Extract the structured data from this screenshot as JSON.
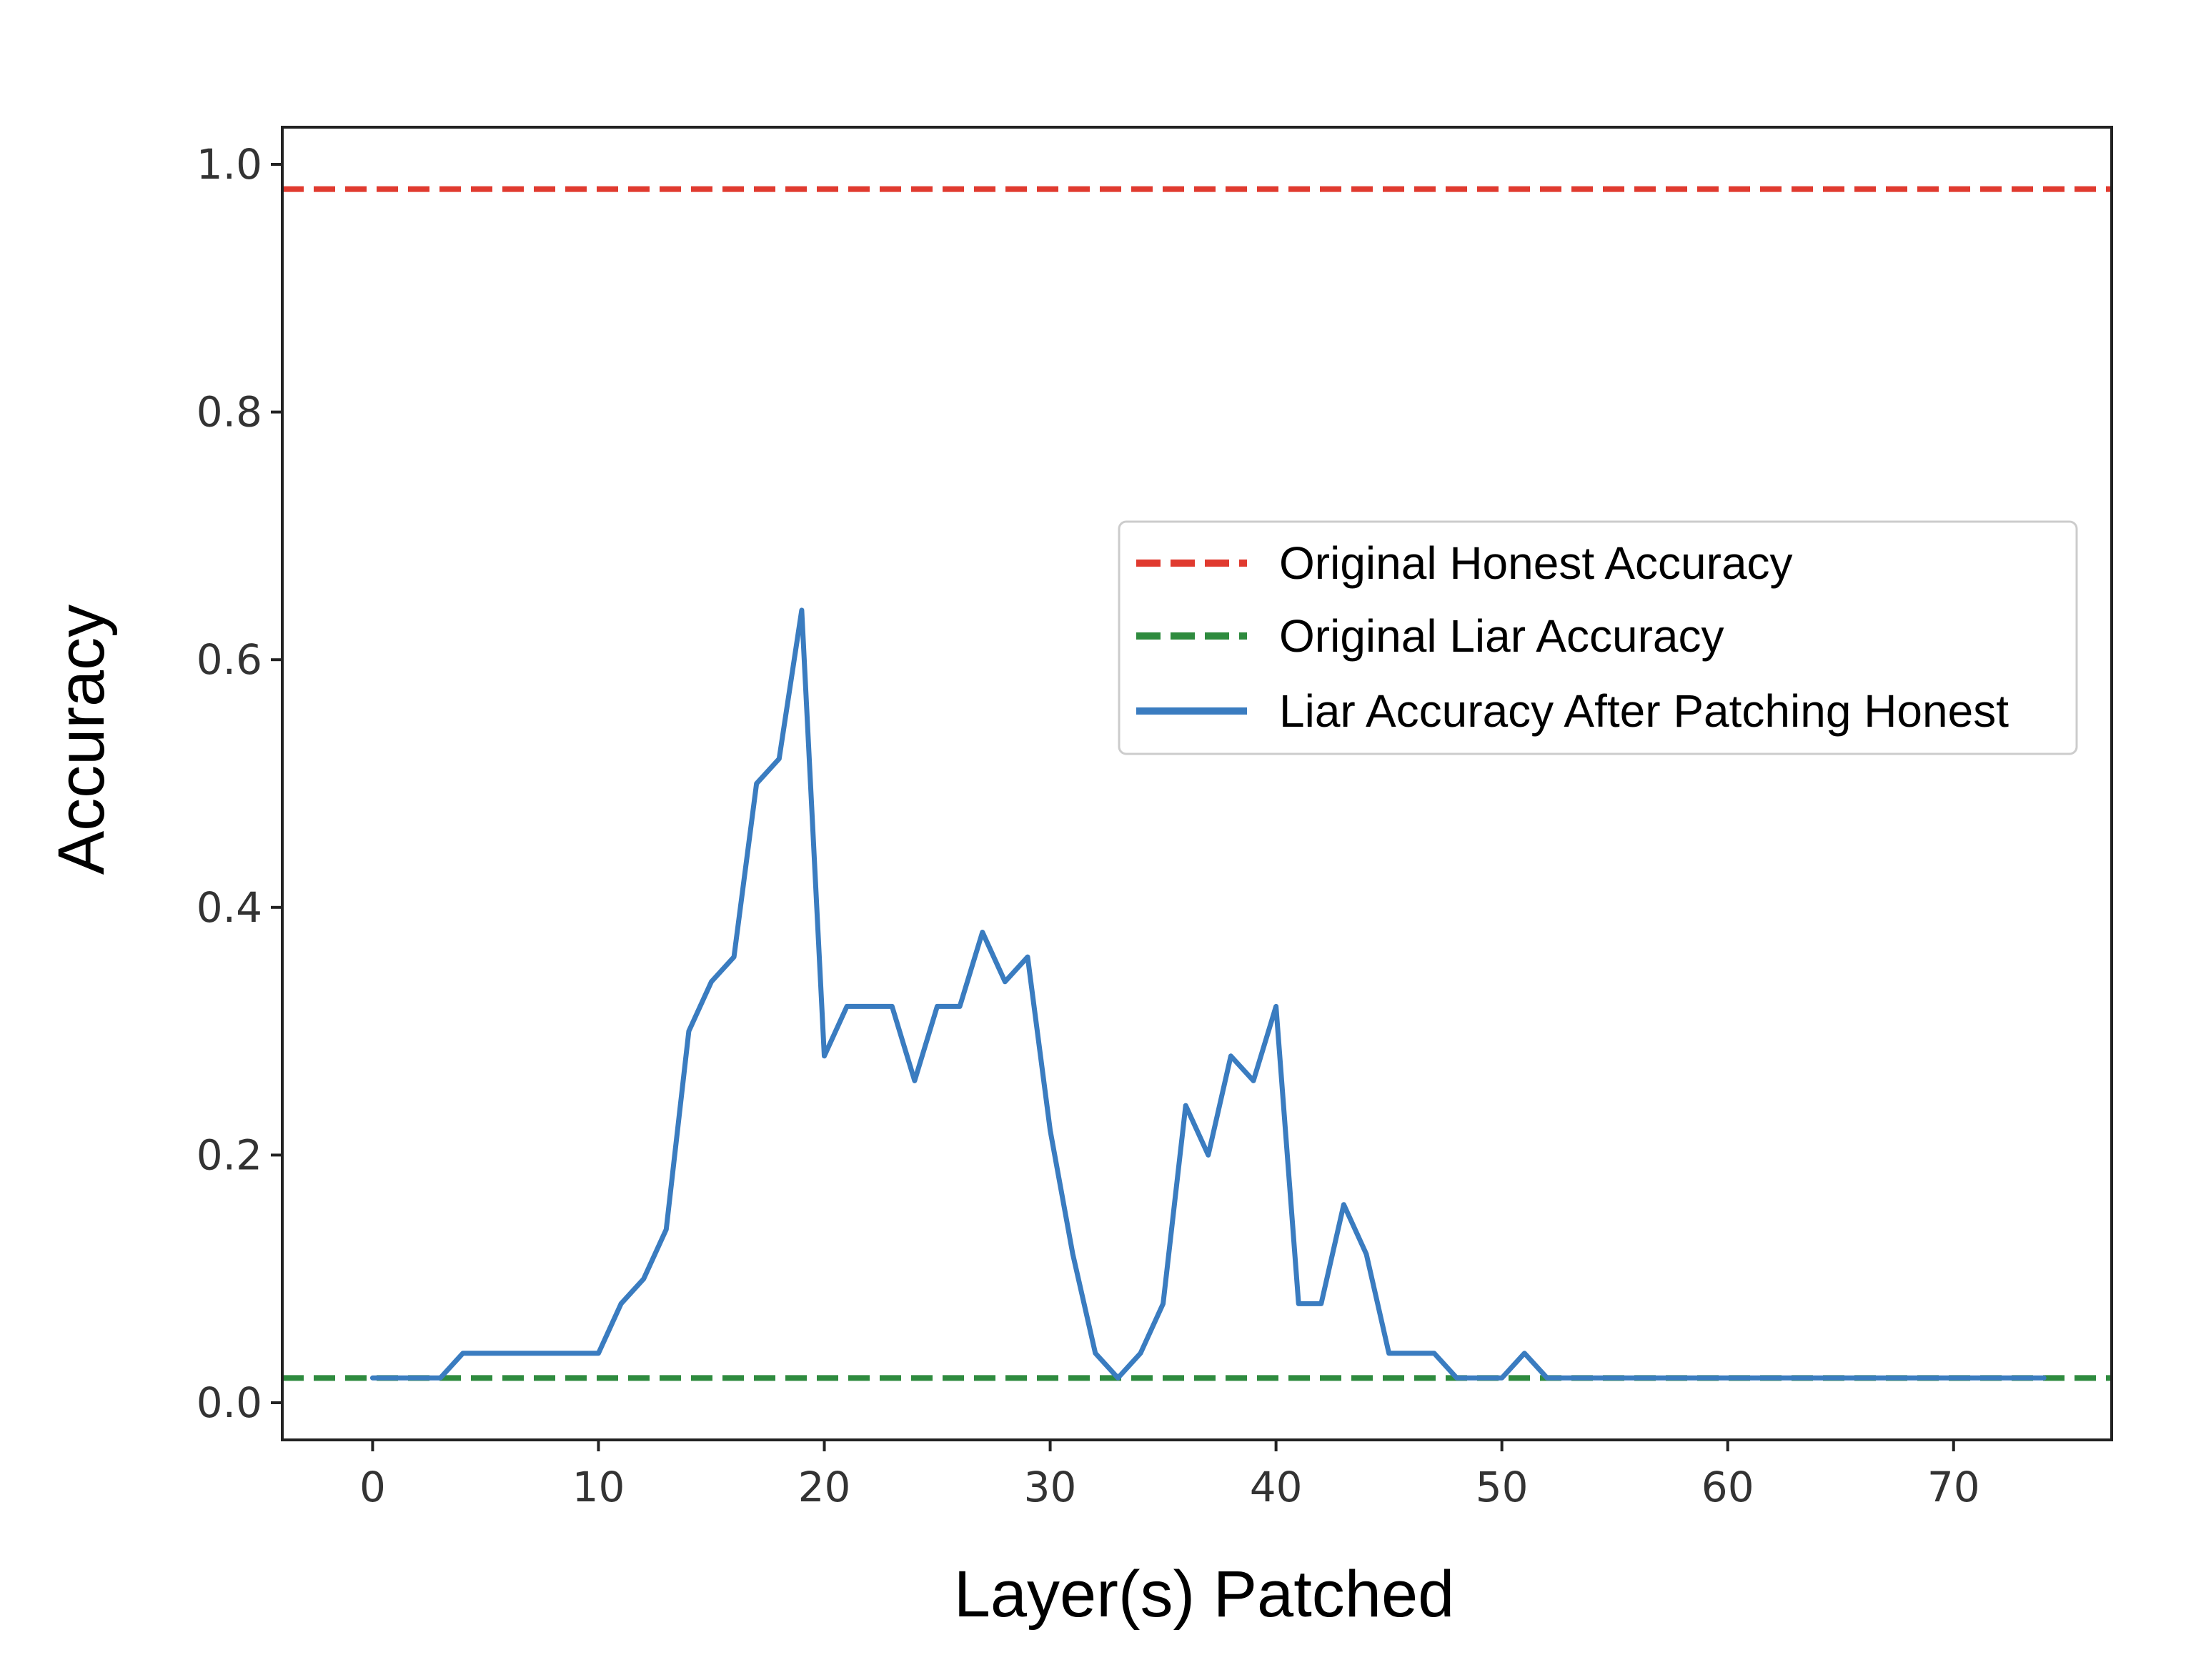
{
  "chart_data": {
    "type": "line",
    "xlabel": "Layer(s) Patched",
    "ylabel": "Accuracy",
    "xlim": [
      -4,
      77
    ],
    "ylim": [
      -0.03,
      1.03
    ],
    "x_ticks": [
      0,
      10,
      20,
      30,
      40,
      50,
      60,
      70
    ],
    "y_ticks": [
      0.0,
      0.2,
      0.4,
      0.6,
      0.8,
      1.0
    ],
    "x_tick_labels": [
      "0",
      "10",
      "20",
      "30",
      "40",
      "50",
      "60",
      "70"
    ],
    "y_tick_labels": [
      "0.0",
      "0.2",
      "0.4",
      "0.6",
      "0.8",
      "1.0"
    ],
    "grid": false,
    "legend_position": "center-right",
    "reference_lines": [
      {
        "name": "Original Honest Accuracy",
        "y": 0.98,
        "color": "#e03a2f",
        "style": "dashed"
      },
      {
        "name": "Original Liar Accuracy",
        "y": 0.02,
        "color": "#2e8b3e",
        "style": "dashed"
      }
    ],
    "series": [
      {
        "name": "Liar Accuracy After Patching Honest",
        "color": "#3a7cc0",
        "x": [
          0,
          1,
          2,
          3,
          4,
          5,
          6,
          7,
          8,
          9,
          10,
          11,
          12,
          13,
          14,
          15,
          16,
          17,
          18,
          19,
          20,
          21,
          22,
          23,
          24,
          25,
          26,
          27,
          28,
          29,
          30,
          31,
          32,
          33,
          34,
          35,
          36,
          37,
          38,
          39,
          40,
          41,
          42,
          43,
          44,
          45,
          46,
          47,
          48,
          49,
          50,
          51,
          52,
          53,
          54,
          55,
          56,
          57,
          58,
          59,
          60,
          61,
          62,
          63,
          64,
          65,
          66,
          67,
          68,
          69,
          70,
          71,
          72,
          73,
          74
        ],
        "y": [
          0.02,
          0.02,
          0.02,
          0.02,
          0.04,
          0.04,
          0.04,
          0.04,
          0.04,
          0.04,
          0.04,
          0.08,
          0.1,
          0.14,
          0.3,
          0.34,
          0.36,
          0.5,
          0.52,
          0.64,
          0.28,
          0.32,
          0.32,
          0.32,
          0.26,
          0.32,
          0.32,
          0.38,
          0.34,
          0.36,
          0.22,
          0.12,
          0.04,
          0.02,
          0.04,
          0.08,
          0.24,
          0.2,
          0.28,
          0.26,
          0.32,
          0.08,
          0.08,
          0.16,
          0.12,
          0.04,
          0.04,
          0.04,
          0.02,
          0.02,
          0.02,
          0.04,
          0.02,
          0.02,
          0.02,
          0.02,
          0.02,
          0.02,
          0.02,
          0.02,
          0.02,
          0.02,
          0.02,
          0.02,
          0.02,
          0.02,
          0.02,
          0.02,
          0.02,
          0.02,
          0.02,
          0.02,
          0.02,
          0.02,
          0.02
        ]
      }
    ]
  }
}
